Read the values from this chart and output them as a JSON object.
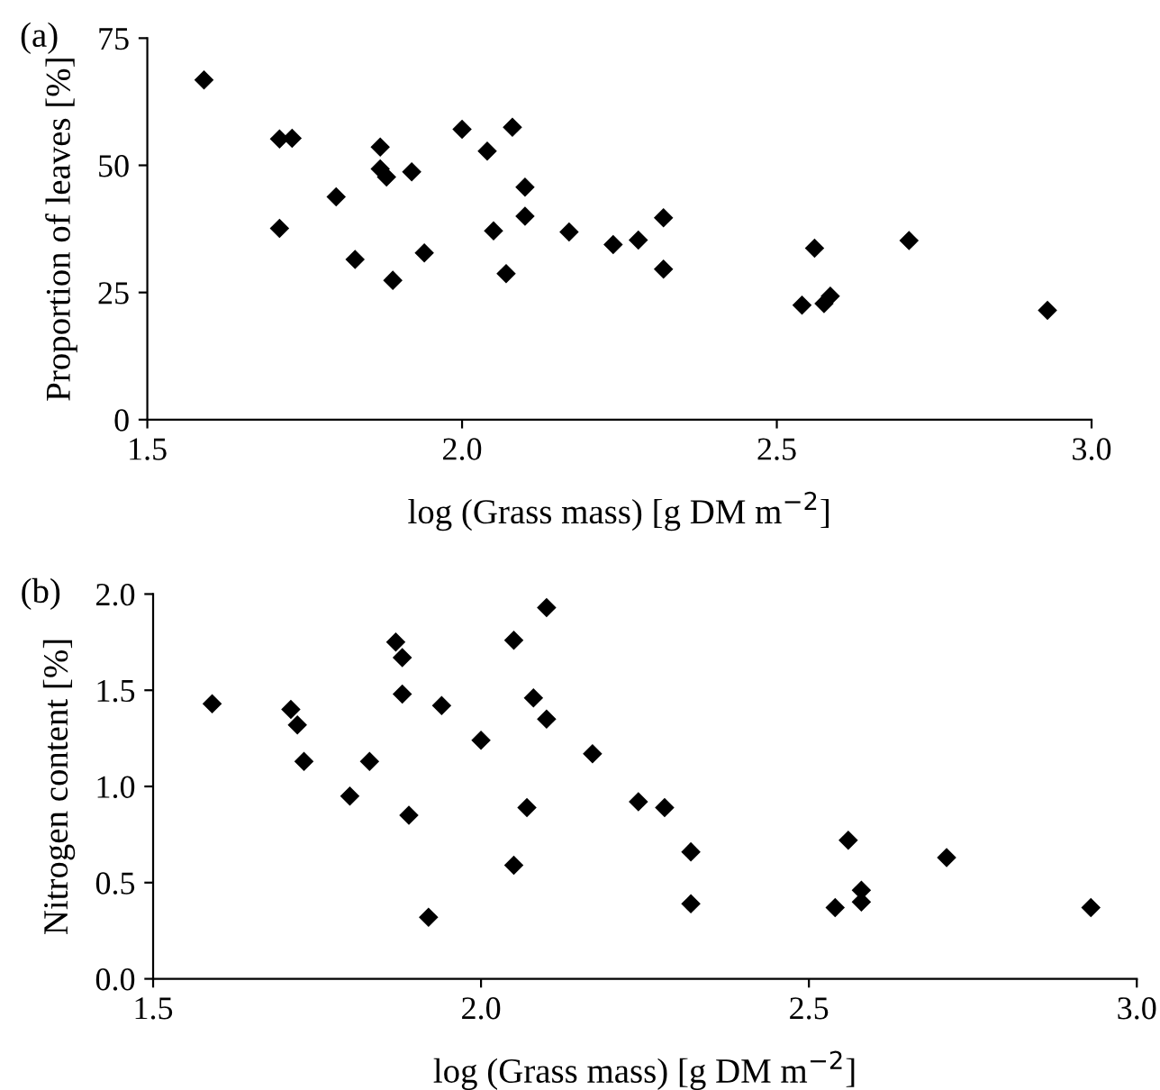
{
  "chart_data": [
    {
      "type": "scatter",
      "xlabel": "log (Grass mass) [g DM m$^{−2}$]",
      "ylabel": "Proportion of leaves [%]",
      "annotations": [
        "(a)"
      ],
      "marker": "diamond",
      "grid": false,
      "xlim": [
        1.5,
        3.0
      ],
      "xticks": [
        {
          "value": 1.5,
          "label": "1.5"
        },
        {
          "value": 2.0,
          "label": "2.0"
        },
        {
          "value": 2.5,
          "label": "2.5"
        },
        {
          "value": 3.0,
          "label": "3.0"
        }
      ],
      "ylim": [
        0,
        75
      ],
      "yticks": [
        0,
        25,
        50,
        75
      ],
      "series": [
        {
          "color": "#000000",
          "x": [
            1.59,
            1.71,
            1.73,
            1.71,
            1.8,
            1.83,
            1.87,
            1.87,
            1.88,
            1.92,
            1.89,
            1.94,
            2.0,
            2.04,
            2.08,
            2.1,
            2.1,
            2.05,
            2.07,
            2.17,
            2.24,
            2.28,
            2.32,
            2.32,
            2.54,
            2.56,
            2.575,
            2.585,
            2.71,
            2.93
          ],
          "values": [
            66.8,
            55.2,
            55.3,
            37.6,
            43.8,
            31.5,
            53.6,
            49.3,
            47.7,
            48.7,
            27.4,
            32.8,
            57.1,
            52.8,
            57.5,
            45.7,
            40.0,
            37.1,
            28.7,
            36.9,
            34.4,
            35.3,
            39.7,
            29.6,
            22.5,
            33.7,
            22.8,
            24.3,
            35.2,
            21.5
          ]
        }
      ]
    },
    {
      "type": "scatter",
      "xlabel": "log (Grass mass) [g DM m$^{−2}$]",
      "ylabel": "Nitrogen content [%]",
      "annotations": [
        "(b)"
      ],
      "marker": "diamond",
      "grid": false,
      "xlim": [
        1.5,
        3.0
      ],
      "xticks": [
        {
          "value": 1.5,
          "label": "1.5"
        },
        {
          "value": 2.0,
          "label": "2.0"
        },
        {
          "value": 2.5,
          "label": "2.5"
        },
        {
          "value": 3.0,
          "label": "3.0"
        }
      ],
      "ylim": [
        0,
        2.0
      ],
      "yticks": [
        {
          "value": 0,
          "label": "0.0"
        },
        {
          "value": 0.5,
          "label": "0.5"
        },
        {
          "value": 1.0,
          "label": "1.0"
        },
        {
          "value": 1.5,
          "label": "1.5"
        },
        {
          "value": 2.0,
          "label": "2.0"
        }
      ],
      "series": [
        {
          "color": "#000000",
          "x": [
            1.59,
            1.71,
            1.72,
            1.73,
            1.8,
            1.83,
            1.87,
            1.88,
            1.88,
            1.89,
            1.94,
            1.92,
            2.0,
            2.05,
            2.05,
            2.08,
            2.1,
            2.1,
            2.07,
            2.17,
            2.24,
            2.28,
            2.32,
            2.32,
            2.54,
            2.56,
            2.58,
            2.58,
            2.71,
            2.93
          ],
          "values": [
            1.43,
            1.4,
            1.32,
            1.13,
            0.95,
            1.13,
            1.75,
            1.67,
            1.48,
            0.85,
            1.42,
            0.32,
            1.24,
            1.76,
            0.59,
            1.46,
            1.93,
            1.35,
            0.89,
            1.17,
            0.92,
            0.89,
            0.66,
            0.39,
            0.37,
            0.72,
            0.4,
            0.46,
            0.63,
            0.37
          ]
        }
      ]
    }
  ]
}
